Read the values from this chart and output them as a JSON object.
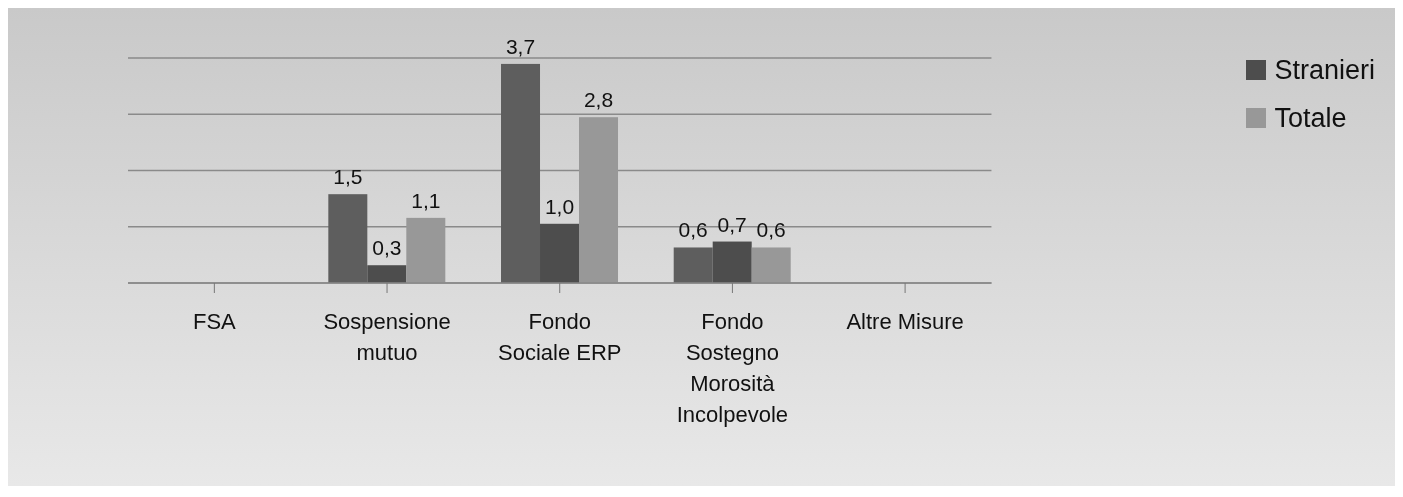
{
  "chart_data": {
    "type": "bar",
    "categories": [
      "FSA",
      "Sospensione mutuo",
      "Fondo Sociale ERP",
      "Fondo Sostegno Morosità Incolpevole",
      "Altre Misure"
    ],
    "series": [
      {
        "color": "#5e5e5e",
        "values": [
          null,
          1.5,
          3.7,
          0.6,
          null
        ],
        "value_labels": [
          null,
          "1,5",
          "3,7",
          "0,6",
          null
        ]
      },
      {
        "name": "Stranieri",
        "color": "#4d4d4d",
        "values": [
          null,
          0.3,
          1.0,
          0.7,
          null
        ],
        "value_labels": [
          null,
          "0,3",
          "1,0",
          "0,7",
          null
        ]
      },
      {
        "name": "Totale",
        "color": "#989898",
        "values": [
          null,
          1.1,
          2.8,
          0.6,
          null
        ],
        "value_labels": [
          null,
          "1,1",
          "2,8",
          "0,6",
          null
        ]
      }
    ],
    "tick_labels": "x",
    "grid": "y",
    "legend": "top right"
  }
}
